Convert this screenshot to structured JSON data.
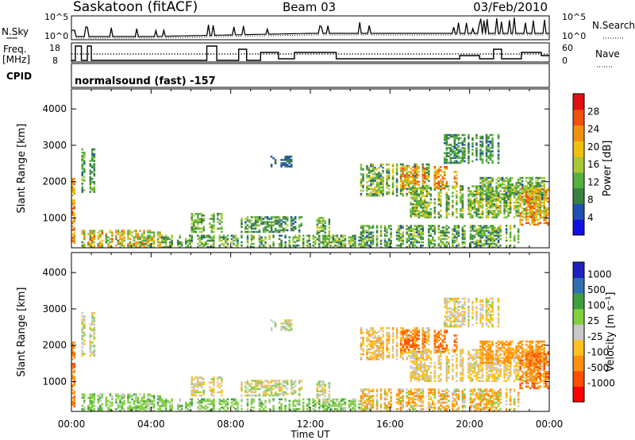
{
  "header": {
    "title": "Saskatoon (fitACF)",
    "beam": "Beam 03",
    "date": "03/Feb/2010"
  },
  "labels": {
    "nsky": "N.Sky",
    "nsearch": "N.Search",
    "freq": "Freq.",
    "freq_unit": "[MHz]",
    "nave": "Nave",
    "cpid": "CPID",
    "cpid_value": "normalsound (fast) -157",
    "nsky_ticks": [
      "10^5",
      "10^0"
    ],
    "nsearch_ticks": [
      "10^5",
      "10^0"
    ],
    "freq_ticks": [
      "18",
      "8"
    ],
    "nave_ticks": [
      "60",
      "0"
    ]
  },
  "colors": {
    "power": [
      "#1010e0",
      "#2050b0",
      "#3a8040",
      "#56b040",
      "#a8c838",
      "#f0c010",
      "#f09010",
      "#f05010",
      "#e01010"
    ],
    "velocity": [
      "#ff0000",
      "#ff5000",
      "#ff9010",
      "#ffc020",
      "#c8c8c8",
      "#80d040",
      "#40a040",
      "#3070b0",
      "#2020c0"
    ],
    "line": "#000000"
  },
  "chart_data": [
    {
      "type": "heatmap",
      "title": "Power",
      "xlabel": "Time UT",
      "ylabel": "Slant Range [km]",
      "xticks": [
        "00:00",
        "04:00",
        "08:00",
        "12:00",
        "16:00",
        "20:00",
        "00:00"
      ],
      "yticks": [
        "1000",
        "2000",
        "3000",
        "4000"
      ],
      "ylim": [
        180,
        4550
      ],
      "colorbar_label": "Power [dB]",
      "colorbar_ticks": [
        "4",
        "8",
        "12",
        "16",
        "20",
        "24",
        "28"
      ],
      "clim": [
        0,
        32
      ]
    },
    {
      "type": "heatmap",
      "title": "Velocity",
      "xlabel": "Time UT",
      "ylabel": "Slant Range [km]",
      "xticks": [
        "00:00",
        "04:00",
        "08:00",
        "12:00",
        "16:00",
        "20:00",
        "00:00"
      ],
      "yticks": [
        "1000",
        "2000",
        "3000",
        "4000"
      ],
      "ylim": [
        180,
        4550
      ],
      "colorbar_label": "Velocity [m s⁻¹]",
      "colorbar_ticks": [
        "1000",
        "500",
        "100",
        "25",
        "-25",
        "-100",
        "-500",
        "-1000"
      ]
    }
  ],
  "xlabel": "Time UT"
}
